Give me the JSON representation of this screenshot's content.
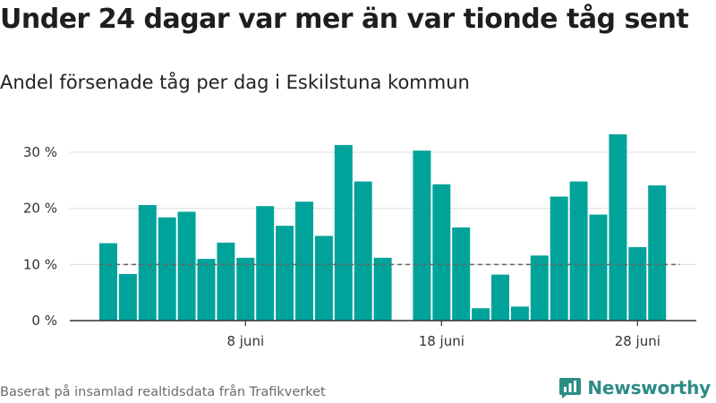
{
  "title": "Under 24 dagar var mer än var tionde tåg sent",
  "subtitle": "Andel försenade tåg per dag i Eskilstuna kommun",
  "source": "Baserat på insamlad realtidsdata från Trafikverket",
  "brand": {
    "name": "Newsworthy",
    "icon": "newsworthy-logo-icon"
  },
  "colors": {
    "bar": "#00a39a",
    "reference_line": "#666666",
    "grid": "#dddddd",
    "axis": "#333333"
  },
  "chart_data": {
    "type": "bar",
    "title": "Under 24 dagar var mer än var tionde tåg sent",
    "subtitle": "Andel försenade tåg per dag i Eskilstuna kommun",
    "x": [
      1,
      2,
      3,
      4,
      5,
      6,
      7,
      8,
      9,
      10,
      11,
      12,
      13,
      14,
      15,
      16,
      17,
      18,
      19,
      20,
      21,
      22,
      23,
      24,
      25,
      26,
      27,
      28,
      29,
      30
    ],
    "values": [
      13.8,
      8.3,
      20.6,
      18.4,
      19.4,
      11.0,
      13.9,
      11.2,
      20.4,
      16.9,
      21.2,
      15.1,
      31.3,
      24.8,
      11.2,
      null,
      30.3,
      24.3,
      16.6,
      2.2,
      8.2,
      2.5,
      11.6,
      22.1,
      24.8,
      18.9,
      33.2,
      13.1,
      24.1,
      null
    ],
    "x_ticks": [
      {
        "x": 8,
        "label": "8 juni"
      },
      {
        "x": 18,
        "label": "18 juni"
      },
      {
        "x": 28,
        "label": "28 juni"
      }
    ],
    "y_ticks": [
      {
        "value": 0,
        "label": "0 %"
      },
      {
        "value": 10,
        "label": "10 %"
      },
      {
        "value": 20,
        "label": "20 %"
      },
      {
        "value": 30,
        "label": "30 %"
      }
    ],
    "ylim": [
      0,
      34
    ],
    "reference_line": {
      "value": 10,
      "style": "dashed"
    },
    "grid": true,
    "legend": false,
    "xlabel": "",
    "ylabel": ""
  }
}
